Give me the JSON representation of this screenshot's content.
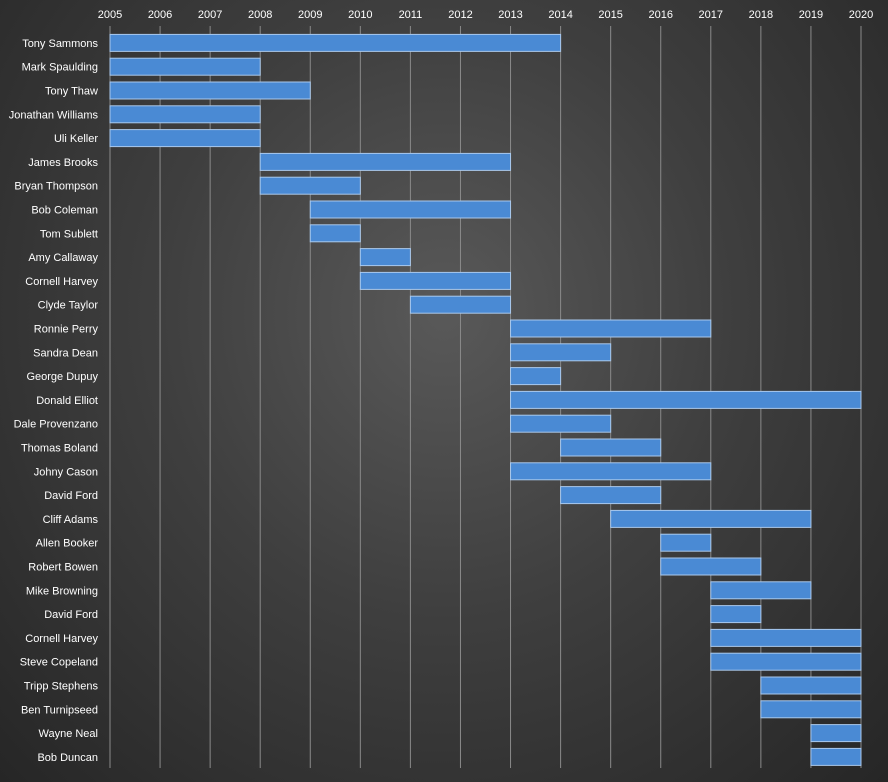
{
  "chart_data": {
    "type": "bar",
    "orientation": "horizontal-range",
    "xlim": [
      2005,
      2020
    ],
    "x_ticks": [
      "2005",
      "2006",
      "2007",
      "2008",
      "2009",
      "2010",
      "2011",
      "2012",
      "2013",
      "2014",
      "2015",
      "2016",
      "2017",
      "2018",
      "2019",
      "2020"
    ],
    "x_axis_position": "top",
    "grid": true,
    "bar_color": "#4a8ad4",
    "rows": [
      {
        "name": "Tony Sammons",
        "start": 2005,
        "end": 2014
      },
      {
        "name": "Mark Spaulding",
        "start": 2005,
        "end": 2008
      },
      {
        "name": "Tony Thaw",
        "start": 2005,
        "end": 2009
      },
      {
        "name": "Jonathan Williams",
        "start": 2005,
        "end": 2008
      },
      {
        "name": "Uli Keller",
        "start": 2005,
        "end": 2008
      },
      {
        "name": "James Brooks",
        "start": 2008,
        "end": 2013
      },
      {
        "name": "Bryan Thompson",
        "start": 2008,
        "end": 2010
      },
      {
        "name": "Bob Coleman",
        "start": 2009,
        "end": 2013
      },
      {
        "name": "Tom Sublett",
        "start": 2009,
        "end": 2010
      },
      {
        "name": "Amy Callaway",
        "start": 2010,
        "end": 2011
      },
      {
        "name": "Cornell Harvey",
        "start": 2010,
        "end": 2013
      },
      {
        "name": "Clyde Taylor",
        "start": 2011,
        "end": 2013
      },
      {
        "name": "Ronnie Perry",
        "start": 2013,
        "end": 2017
      },
      {
        "name": "Sandra Dean",
        "start": 2013,
        "end": 2015
      },
      {
        "name": "George Dupuy",
        "start": 2013,
        "end": 2014
      },
      {
        "name": "Donald Elliot",
        "start": 2013,
        "end": 2020
      },
      {
        "name": "Dale Provenzano",
        "start": 2013,
        "end": 2015
      },
      {
        "name": "Thomas Boland",
        "start": 2014,
        "end": 2016
      },
      {
        "name": "Johny Cason",
        "start": 2013,
        "end": 2017
      },
      {
        "name": "David Ford",
        "start": 2014,
        "end": 2016
      },
      {
        "name": "Cliff Adams",
        "start": 2015,
        "end": 2019
      },
      {
        "name": "Allen Booker",
        "start": 2016,
        "end": 2017
      },
      {
        "name": "Robert Bowen",
        "start": 2016,
        "end": 2018
      },
      {
        "name": "Mike Browning",
        "start": 2017,
        "end": 2019
      },
      {
        "name": "David Ford",
        "start": 2017,
        "end": 2018
      },
      {
        "name": "Cornell Harvey",
        "start": 2017,
        "end": 2020
      },
      {
        "name": "Steve Copeland",
        "start": 2017,
        "end": 2020
      },
      {
        "name": "Tripp Stephens",
        "start": 2018,
        "end": 2020
      },
      {
        "name": "Ben Turnipseed",
        "start": 2018,
        "end": 2020
      },
      {
        "name": "Wayne Neal",
        "start": 2019,
        "end": 2020
      },
      {
        "name": "Bob Duncan",
        "start": 2019,
        "end": 2020
      }
    ]
  }
}
